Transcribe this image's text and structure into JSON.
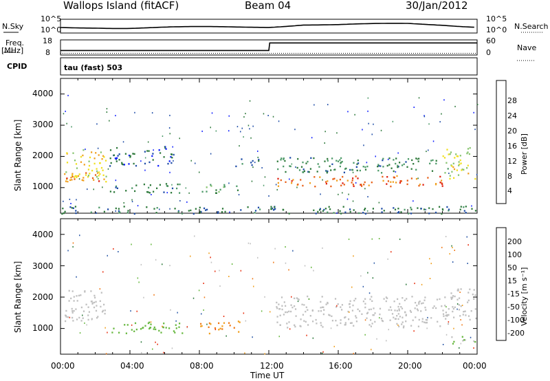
{
  "header": {
    "station": "Wallops Island (fitACF)",
    "beam": "Beam 04",
    "date": "30/Jan/2012"
  },
  "strip": {
    "nsky_label": "N.Sky",
    "nsearch_label": "N.Search",
    "nsky_ticks": [
      "10^5",
      "10^0"
    ],
    "nsearch_ticks": [
      "10^5",
      "10^0"
    ],
    "freq_label": "Freq.",
    "freq_unit": "[MHz]",
    "freq_ticks": [
      "18",
      "8"
    ],
    "nave_label": "Nave",
    "nave_ticks": [
      "60",
      "0"
    ],
    "cpid_label": "CPID",
    "cpid_text": "tau (fast) 503"
  },
  "axes": {
    "ylabel": "Slant Range [km]",
    "yticks": [
      "4000",
      "3000",
      "2000",
      "1000"
    ],
    "xticks": [
      "00:00",
      "04:00",
      "08:00",
      "12:00",
      "16:00",
      "20:00",
      "00:00"
    ],
    "xlabel": "Time UT"
  },
  "colorbars": {
    "power": {
      "label": "Power [dB]",
      "ticks": [
        "28",
        "24",
        "20",
        "16",
        "12",
        "8",
        "4"
      ],
      "colors": [
        "#1020ff",
        "#204ea8",
        "#2f7a3c",
        "#4c9a68",
        "#88c470",
        "#f0e020",
        "#f0a020",
        "#e86018",
        "#e02010"
      ]
    },
    "velocity": {
      "label": "Velocity [m s⁻¹]",
      "ticks": [
        "200",
        "100",
        "50",
        "15",
        "-15",
        "-50",
        "-100",
        "-200"
      ],
      "colors": [
        "#1026c8",
        "#2c5aa8",
        "#2e7a3c",
        "#68b840",
        "#c0c0c0",
        "#f0a020",
        "#f07a18",
        "#e83010",
        "#e00000"
      ]
    }
  },
  "chart_data": [
    {
      "type": "line",
      "title": "N.Sky / N.Search",
      "x_unit": "hours UT",
      "x": [
        0,
        2,
        4,
        6,
        8,
        10,
        12,
        14,
        16,
        18,
        20,
        22,
        24
      ],
      "series": [
        {
          "values": [
            2.0,
            2.1,
            1.9,
            2.0,
            2.0,
            2.1,
            2.3,
            3.2,
            3.0,
            3.1,
            3.3,
            3.0,
            2.4
          ]
        }
      ]
    },
    {
      "type": "line",
      "title": "Freq. / Nave",
      "x_unit": "hours UT",
      "series": [
        {
          "name": "Freq. [MHz]",
          "x": [
            0,
            0.15,
            12,
            12.05,
            24
          ],
          "values": [
            11,
            11,
            11,
            16,
            16
          ]
        }
      ]
    },
    {
      "type": "heatmap",
      "title": "Power [dB]",
      "xlabel": "Time UT",
      "ylabel": "Slant Range [km]",
      "xlim": [
        0,
        24
      ],
      "ylim": [
        180,
        4500
      ],
      "clim": [
        0,
        32
      ],
      "bands": [
        {
          "t0": 0.2,
          "t1": 2.6,
          "r0": 1150,
          "r1": 2250,
          "level": 20
        },
        {
          "t0": 0.3,
          "t1": 2.5,
          "r0": 1200,
          "r1": 1500,
          "level": 26
        },
        {
          "t0": 2.8,
          "t1": 7.0,
          "r0": 850,
          "r1": 1150,
          "level": 9
        },
        {
          "t0": 2.8,
          "t1": 6.5,
          "r0": 1700,
          "r1": 2300,
          "level": 6
        },
        {
          "t0": 8.0,
          "t1": 10.3,
          "r0": 850,
          "r1": 1150,
          "level": 12
        },
        {
          "t0": 10.0,
          "t1": 11.5,
          "r0": 1700,
          "r1": 1950,
          "level": 8
        },
        {
          "t0": 12.4,
          "t1": 22.0,
          "r0": 1500,
          "r1": 2000,
          "level": 10
        },
        {
          "t0": 12.4,
          "t1": 22.0,
          "r0": 1050,
          "r1": 1400,
          "level": 26
        },
        {
          "t0": 22.0,
          "t1": 23.9,
          "r0": 1300,
          "r1": 2300,
          "level": 18
        },
        {
          "t0": 0.0,
          "t1": 23.9,
          "r0": 180,
          "r1": 420,
          "level": 8
        }
      ]
    },
    {
      "type": "heatmap",
      "title": "Velocity [m s⁻¹]",
      "xlabel": "Time UT",
      "ylabel": "Slant Range [km]",
      "xlim": [
        0,
        24
      ],
      "ylim": [
        180,
        4500
      ],
      "clim": [
        -200,
        200
      ],
      "bands": [
        {
          "t0": 0.2,
          "t1": 2.6,
          "r0": 1150,
          "r1": 2250,
          "level": 0
        },
        {
          "t0": 2.8,
          "t1": 7.0,
          "r0": 850,
          "r1": 1250,
          "level": 40
        },
        {
          "t0": 8.0,
          "t1": 10.3,
          "r0": 850,
          "r1": 1250,
          "level": -60
        },
        {
          "t0": 12.4,
          "t1": 22.5,
          "r0": 1050,
          "r1": 2050,
          "level": 0
        },
        {
          "t0": 22.0,
          "t1": 23.9,
          "r0": 1300,
          "r1": 2300,
          "level": 0
        },
        {
          "t0": 22.5,
          "t1": 23.9,
          "r0": 500,
          "r1": 800,
          "level": 30
        }
      ]
    }
  ]
}
